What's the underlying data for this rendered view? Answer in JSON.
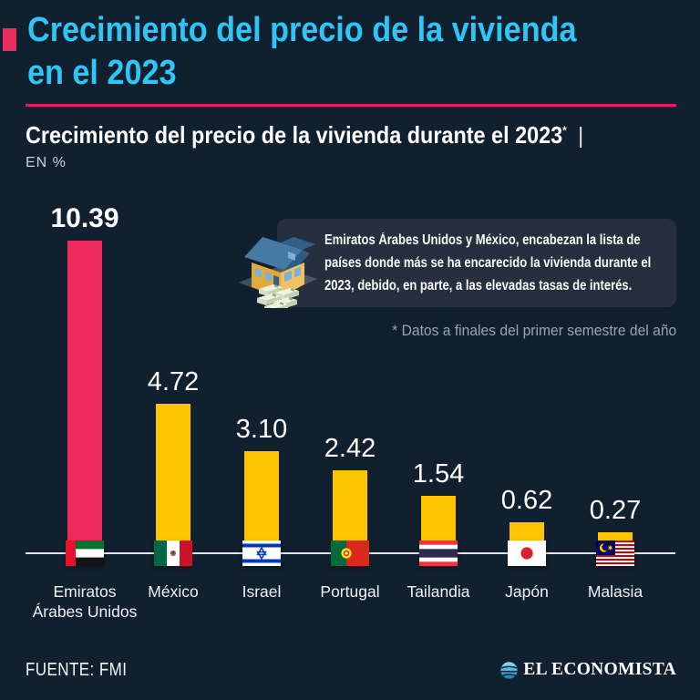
{
  "colors": {
    "background": "#11202e",
    "accent_pink": "#ec2a5b",
    "accent_cyan": "#2dc6f7",
    "bar_yellow": "#fdc501",
    "callout_bg": "#252f3d",
    "axis_line": "#e3e6e8",
    "muted_text": "#98a4b0"
  },
  "header": {
    "title_line1": "Crecimiento del precio de la vivienda",
    "title_line2": "en el 2023"
  },
  "subtitle": {
    "text": "Crecimiento del precio de la vivienda durante el 2023",
    "footnote_marker": "*",
    "divider_mark": "|",
    "unit": "EN %"
  },
  "callout": {
    "icon": "house-with-money",
    "lines": [
      "Emiratos Árabes Unidos y México, encabezan la lista de",
      "países donde más se ha encarecido la vivienda durante el",
      "2023, debido, en parte, a las elevadas tasas de interés."
    ]
  },
  "footnote": "* Datos a finales del primer semestre del año",
  "chart_data": {
    "type": "bar",
    "title": "Crecimiento del precio de la vivienda durante el 2023",
    "ylabel": "EN %",
    "ylim": [
      0,
      10.39
    ],
    "grid": false,
    "legend": "none",
    "categories": [
      "Emiratos Árabes Unidos",
      "México",
      "Israel",
      "Portugal",
      "Tailandia",
      "Japón",
      "Malasia"
    ],
    "category_lines": [
      [
        "Emiratos",
        "Árabes Unidos"
      ],
      [
        "México"
      ],
      [
        "Israel"
      ],
      [
        "Portugal"
      ],
      [
        "Tailandia"
      ],
      [
        "Japón"
      ],
      [
        "Malasia"
      ]
    ],
    "values": [
      10.39,
      4.72,
      3.1,
      2.42,
      1.54,
      0.62,
      0.27
    ],
    "value_labels": [
      "10.39",
      "4.72",
      "3.10",
      "2.42",
      "1.54",
      "0.62",
      "0.27"
    ],
    "flags": [
      "ae",
      "mx",
      "il",
      "pt",
      "th",
      "jp",
      "my"
    ],
    "highlight_index": 0,
    "highlight_color": "#ec2a5b",
    "bar_color": "#fdc501"
  },
  "footer": {
    "source": "FUENTE: FMI",
    "brand": "EL ECONOMISTA"
  }
}
